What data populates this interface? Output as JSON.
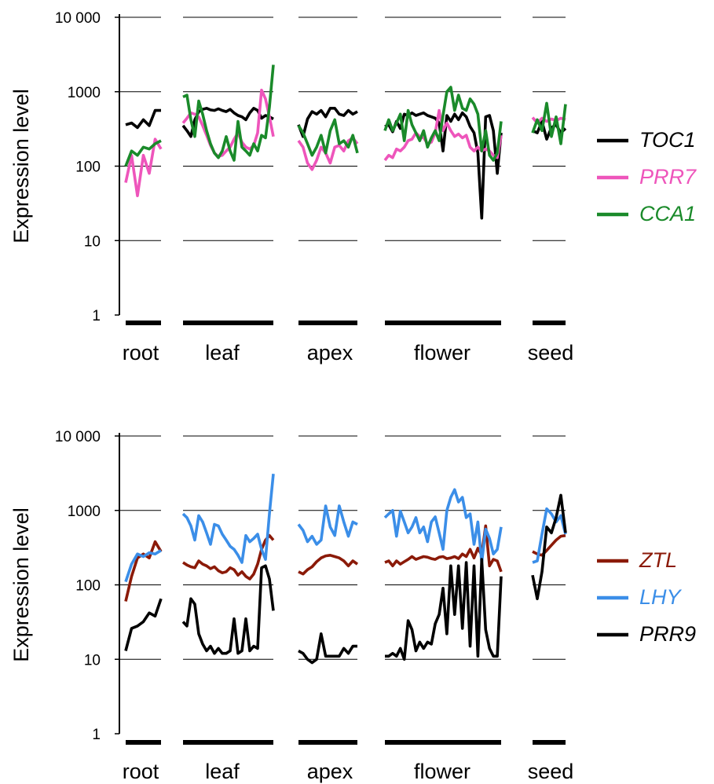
{
  "chart_data": [
    {
      "type": "line",
      "ylabel": "Expression level",
      "yscale": "log",
      "ylim": [
        1,
        10000
      ],
      "yticks": [
        {
          "value": 10000,
          "label": "10 000"
        },
        {
          "value": 1000,
          "label": "1000"
        },
        {
          "value": 100,
          "label": "100"
        },
        {
          "value": 10,
          "label": "10"
        },
        {
          "value": 1,
          "label": "1"
        }
      ],
      "grid": true,
      "legend_position": "right",
      "tissues": [
        {
          "label": "root",
          "points": 7
        },
        {
          "label": "leaf",
          "points": 24
        },
        {
          "label": "apex",
          "points": 14
        },
        {
          "label": "flower",
          "points": 31
        },
        {
          "label": "seed",
          "points": 8
        }
      ],
      "series": [
        {
          "name": "TOC1",
          "color": "#000000",
          "values": [
            [
              360,
              380,
              330,
              420,
              350,
              560,
              560
            ],
            [
              350,
              300,
              250,
              420,
              540,
              580,
              600,
              570,
              560,
              590,
              560,
              540,
              580,
              520,
              480,
              460,
              420,
              520,
              600,
              560,
              440,
              480,
              460,
              430
            ],
            [
              360,
              250,
              430,
              540,
              500,
              560,
              460,
              600,
              600,
              500,
              480,
              560,
              500,
              540
            ],
            [
              340,
              360,
              290,
              400,
              320,
              500,
              480,
              520,
              480,
              500,
              520,
              480,
              460,
              440,
              380,
              160,
              480,
              400,
              500,
              420,
              520,
              460,
              340,
              280,
              150,
              20,
              460,
              480,
              300,
              80,
              280
            ],
            [
              300,
              280,
              400,
              230,
              330,
              360,
              280,
              320
            ]
          ]
        },
        {
          "name": "PRR7",
          "color": "#ee55bb",
          "values": [
            [
              60,
              140,
              40,
              140,
              80,
              230,
              170
            ],
            [
              380,
              440,
              520,
              500,
              460,
              350,
              260,
              190,
              150,
              135,
              140,
              160,
              180,
              230,
              280,
              210,
              180,
              170,
              190,
              280,
              1050,
              800,
              460,
              250
            ],
            [
              220,
              180,
              110,
              90,
              120,
              180,
              150,
              110,
              180,
              190,
              160,
              220,
              240,
              200
            ],
            [
              120,
              140,
              130,
              170,
              160,
              180,
              220,
              230,
              280,
              250,
              240,
              200,
              210,
              280,
              560,
              300,
              380,
              300,
              250,
              270,
              240,
              260,
              180,
              160,
              180,
              160,
              170,
              160,
              140,
              130,
              260
            ],
            [
              450,
              380,
              440,
              400,
              430,
              410,
              440,
              420
            ]
          ]
        },
        {
          "name": "CCA1",
          "color": "#1a8a2a",
          "values": [
            [
              100,
              160,
              140,
              180,
              170,
              200,
              220
            ],
            [
              850,
              900,
              420,
              250,
              750,
              500,
              300,
              200,
              150,
              130,
              160,
              250,
              160,
              120,
              400,
              180,
              160,
              140,
              200,
              160,
              260,
              240,
              620,
              2300
            ],
            [
              350,
              280,
              200,
              140,
              180,
              260,
              150,
              300,
              420,
              200,
              220,
              180,
              260,
              150
            ],
            [
              300,
              420,
              300,
              380,
              500,
              220,
              560,
              360,
              280,
              220,
              300,
              180,
              240,
              300,
              220,
              480,
              1000,
              1150,
              560,
              900,
              600,
              560,
              800,
              680,
              500,
              160,
              300,
              140,
              120,
              150,
              400
            ],
            [
              280,
              420,
              300,
              700,
              250,
              460,
              200,
              680
            ]
          ]
        }
      ]
    },
    {
      "type": "line",
      "ylabel": "Expression level",
      "yscale": "log",
      "ylim": [
        1,
        10000
      ],
      "yticks": [
        {
          "value": 10000,
          "label": "10 000"
        },
        {
          "value": 1000,
          "label": "1000"
        },
        {
          "value": 100,
          "label": "100"
        },
        {
          "value": 10,
          "label": "10"
        },
        {
          "value": 1,
          "label": "1"
        }
      ],
      "grid": true,
      "legend_position": "right",
      "tissues": [
        {
          "label": "root",
          "points": 7
        },
        {
          "label": "leaf",
          "points": 24
        },
        {
          "label": "apex",
          "points": 14
        },
        {
          "label": "flower",
          "points": 31
        },
        {
          "label": "seed",
          "points": 8
        }
      ],
      "series": [
        {
          "name": "ZTL",
          "color": "#8b1a08",
          "values": [
            [
              60,
              130,
              230,
              260,
              230,
              380,
              280
            ],
            [
              200,
              185,
              175,
              170,
              210,
              190,
              180,
              165,
              175,
              155,
              145,
              150,
              170,
              160,
              135,
              150,
              130,
              120,
              140,
              190,
              300,
              400,
              460,
              400
            ],
            [
              150,
              140,
              160,
              175,
              205,
              230,
              245,
              250,
              240,
              230,
              210,
              180,
              210,
              190
            ],
            [
              200,
              210,
              180,
              210,
              190,
              205,
              220,
              240,
              220,
              230,
              240,
              235,
              225,
              220,
              235,
              240,
              225,
              230,
              240,
              225,
              260,
              240,
              300,
              230,
              310,
              250,
              620,
              180,
              220,
              210,
              150
            ],
            [
              280,
              260,
              250,
              290,
              340,
              400,
              450,
              460
            ]
          ]
        },
        {
          "name": "LHY",
          "color": "#3b8ee8",
          "values": [
            [
              110,
              190,
              260,
              240,
              270,
              260,
              290
            ],
            [
              900,
              800,
              620,
              400,
              850,
              700,
              500,
              350,
              650,
              620,
              480,
              400,
              330,
              300,
              250,
              200,
              460,
              380,
              420,
              480,
              300,
              220,
              900,
              3100
            ],
            [
              650,
              540,
              380,
              450,
              350,
              400,
              1150,
              600,
              460,
              1150,
              700,
              450,
              700,
              650
            ],
            [
              800,
              900,
              1000,
              450,
              980,
              700,
              500,
              600,
              800,
              500,
              600,
              380,
              700,
              820,
              500,
              300,
              1000,
              1500,
              1900,
              1300,
              1500,
              800,
              900,
              350,
              700,
              200,
              560,
              420,
              260,
              300,
              600
            ],
            [
              200,
              210,
              480,
              1050,
              900,
              700,
              850,
              480
            ]
          ]
        },
        {
          "name": "PRR9",
          "color": "#000000",
          "values": [
            [
              13,
              26,
              28,
              32,
              42,
              38,
              65
            ],
            [
              32,
              28,
              65,
              55,
              22,
              16,
              13,
              15,
              12,
              14,
              12,
              12,
              13,
              35,
              12,
              13,
              35,
              13,
              15,
              14,
              170,
              180,
              120,
              45
            ],
            [
              13,
              12,
              10,
              9,
              10,
              22,
              11,
              11,
              11,
              11,
              14,
              12,
              15,
              15
            ],
            [
              11,
              11,
              12,
              11,
              14,
              10,
              33,
              25,
              13,
              17,
              14,
              17,
              16,
              30,
              40,
              90,
              22,
              180,
              40,
              180,
              26,
              200,
              15,
              180,
              11,
              220,
              25,
              14,
              11,
              11,
              130
            ],
            [
              135,
              65,
              150,
              600,
              500,
              800,
              1600,
              500
            ]
          ]
        }
      ]
    }
  ]
}
